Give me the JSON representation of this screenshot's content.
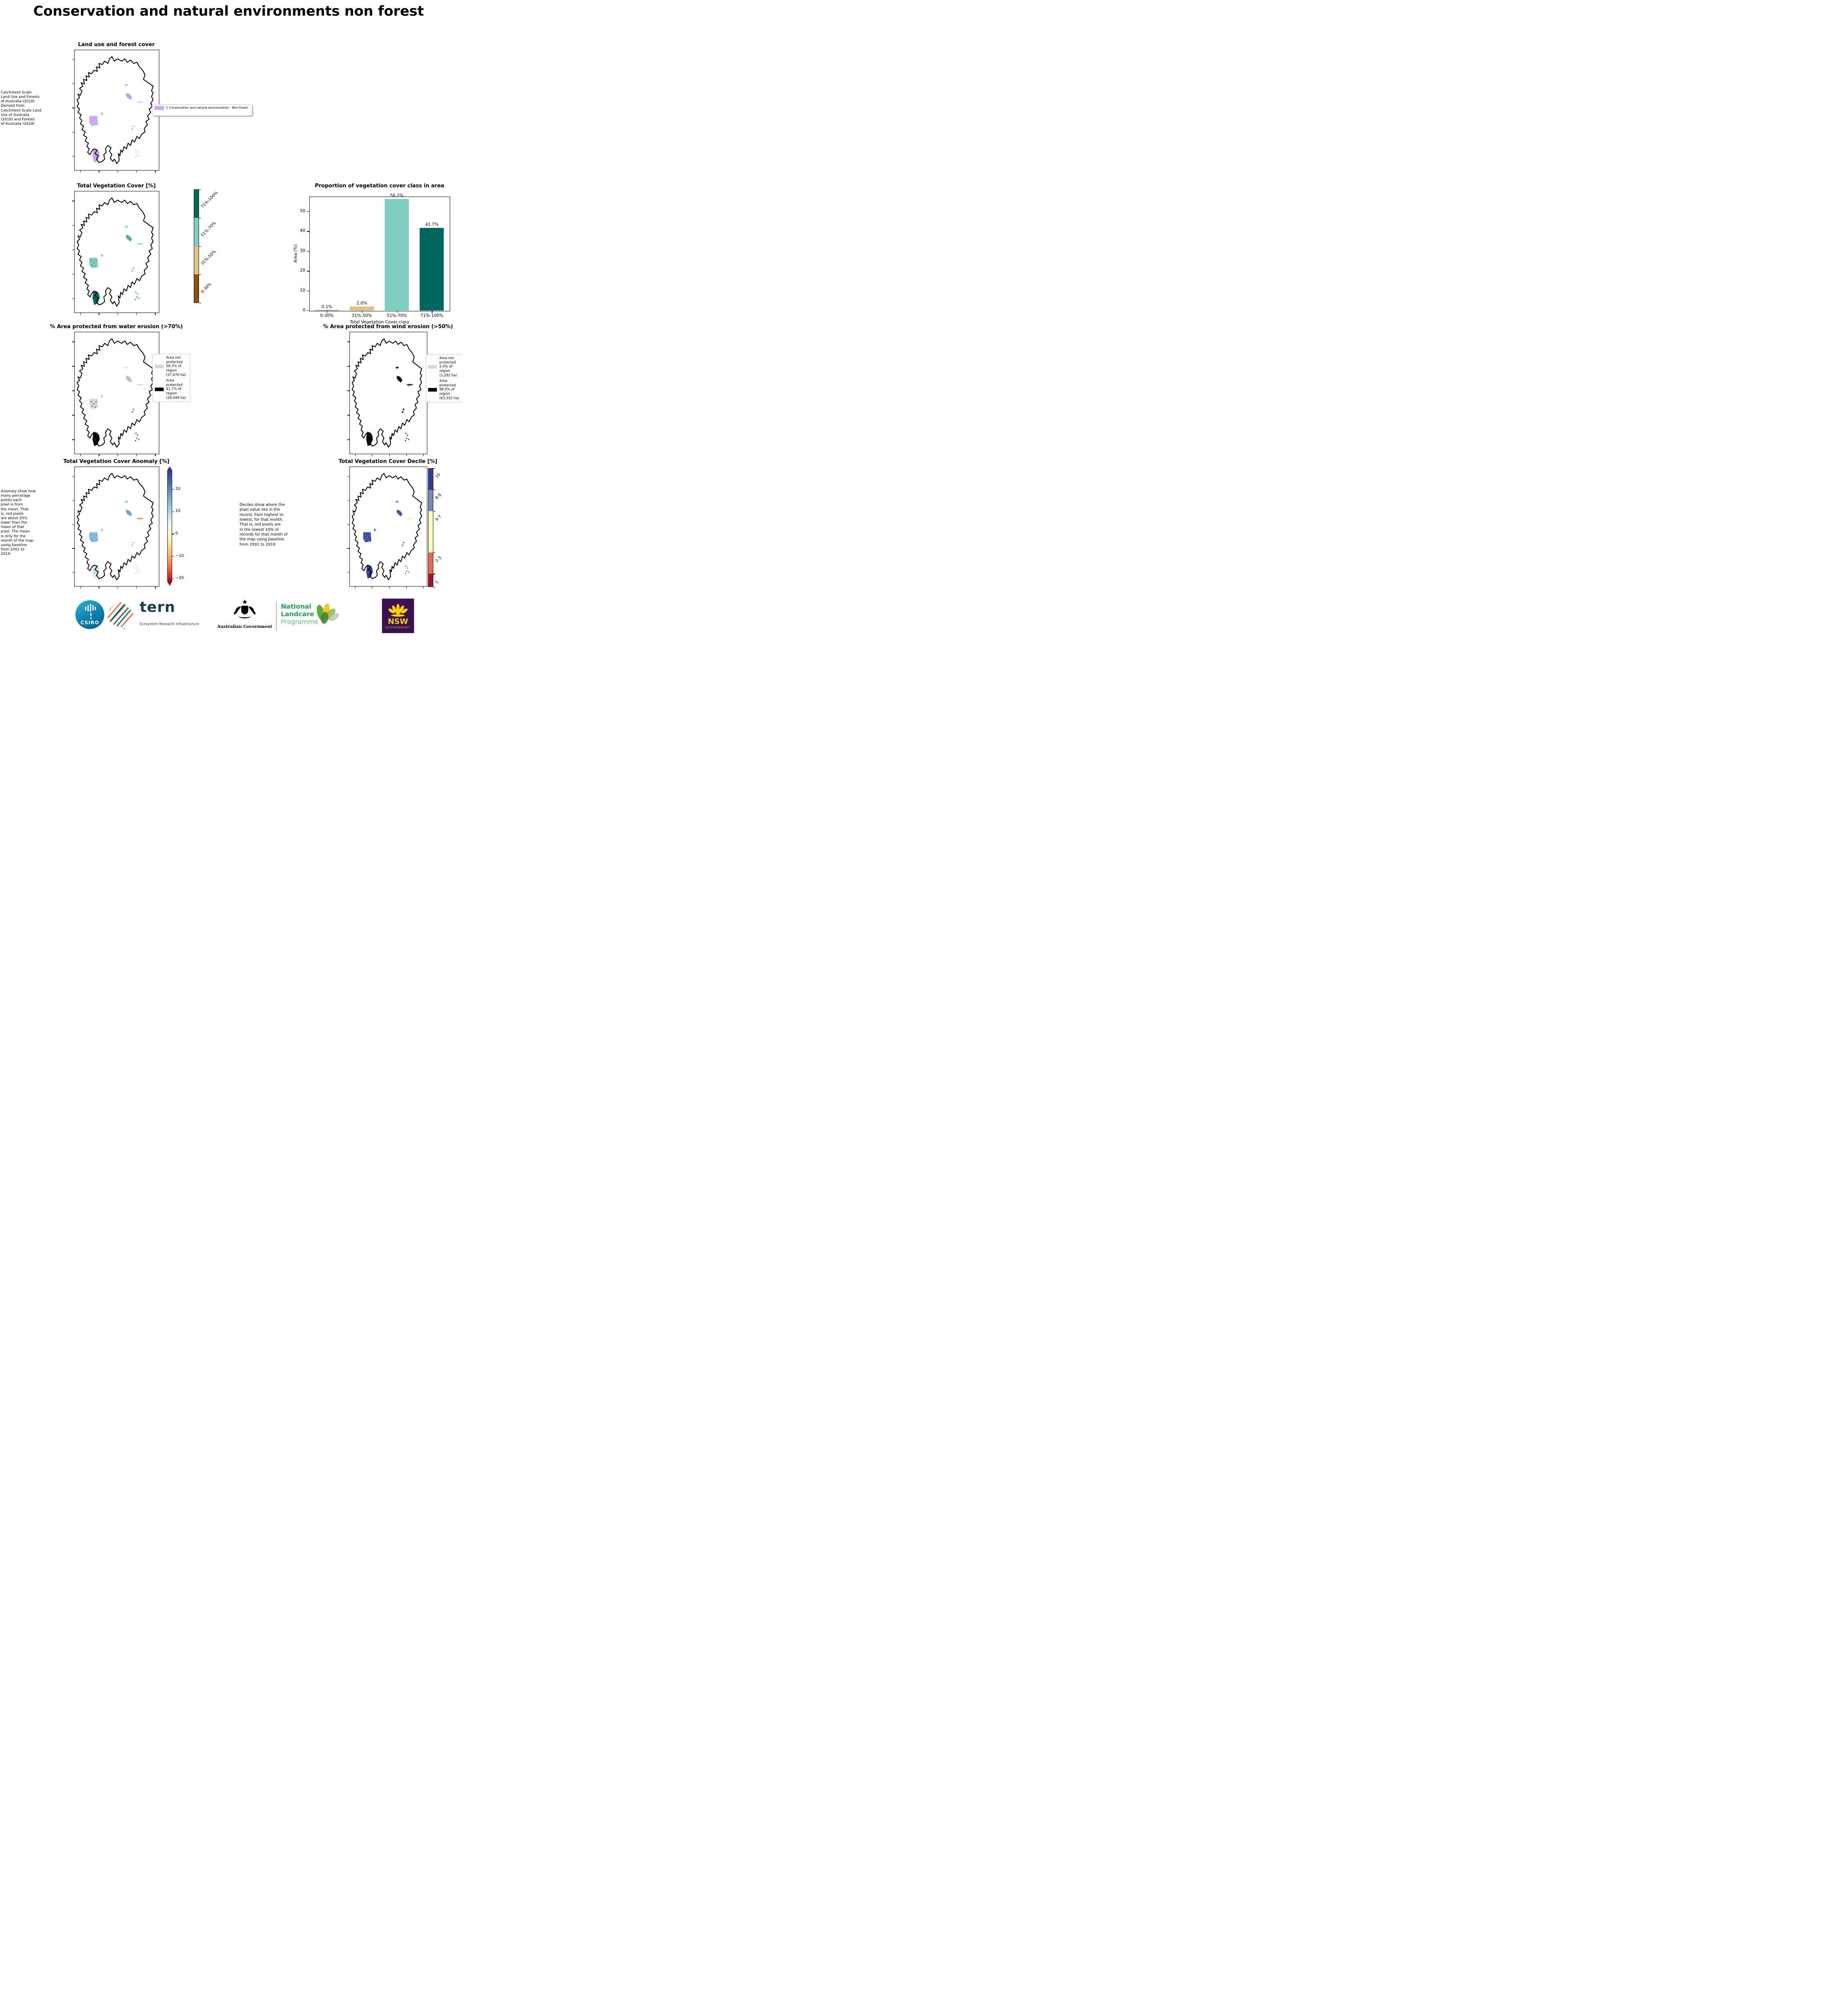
{
  "page_title": "Conservation and natural environments non forest",
  "panels": {
    "landuse": {
      "title": "Land use and forest cover",
      "side_note": "Catchment Scale\nLand Use and Forests\nof Australia (2018)\nDerived from\nCatchment Scale Land\nUse of Australia\n(2018) and Forests\nof Australia (2018)",
      "legend": {
        "label": "1 Conservation and natural environments - Non-forest",
        "swatch_color": "#cfa9f3"
      },
      "map_colors": [
        "#cfa9f3",
        "#cfa9f3",
        "#c9a0f2",
        "#cfa9f3",
        "#c6a0ee",
        "#e2cdf8",
        "#cfa9f3",
        "#d9bdf5"
      ]
    },
    "vegcover": {
      "title": "Total Vegetation Cover [%]",
      "colorbar": {
        "labels": [
          "71%-100%",
          "51%-70%",
          "31%-50%",
          "0-30%"
        ],
        "colors": [
          "#01665e",
          "#80cdc1",
          "#dfc27d",
          "#8c510a"
        ]
      },
      "map_colors": [
        "#80cdc1",
        "#80cdc1",
        "#01665e",
        "#80cdc1",
        "#58b2a4",
        "#a9dcd2",
        "#80cdc1",
        "#2f8d7e"
      ],
      "speckle": "#01665e"
    },
    "water": {
      "title": "% Area protected from water erosion (>70%)",
      "legend": [
        {
          "label": "Area not protected 58.3% of region (37,676 ha)",
          "color": "#d9d9d9"
        },
        {
          "label": "Area protected 41.7% of region (26,949 ha)",
          "color": "#000000"
        }
      ],
      "map_colors": [
        "#d9d9d9",
        "#d0d0d0",
        "#0a0a0a",
        "#d9d9d9",
        "#c0c0c0",
        "#dedede",
        "#8a8a8a",
        "#444444"
      ],
      "speckle": "#111111"
    },
    "wind": {
      "title": "% Area protected from wind erosion (>50%)",
      "legend": [
        {
          "label": "Area not protected 2.0% of region (1,292 ha)",
          "color": "#d9d9d9"
        },
        {
          "label": "Area protected 98.0% of region (63,332 ha)",
          "color": "#000000"
        }
      ],
      "map_colors": [
        null,
        null,
        "#0a0a0a",
        "#111111",
        "#111111",
        "#333333",
        "#111111",
        "#222222"
      ]
    },
    "anomaly": {
      "title": "Total Vegetation Cover Anomaly [%]",
      "side_note": "Anomaly show how\nmany percetage\npoints each\npixel is from\nthe mean. That\nis, red pixels\nare about 20%\nlower than the\nmean of that\npixel. The mean\nis only for the\nmonth of the map\nusing baseline\nfrom 2001 to\n2019.",
      "colorbar": {
        "ticks": [
          "20",
          "10",
          "0",
          "−10",
          "−20"
        ],
        "top_color": "#313695",
        "bottom_color": "#a50026"
      },
      "map_colors": [
        "#86bade",
        "#a5cde9",
        "#cde7f3",
        "#8cc0e2",
        "#6da9d4",
        "#f49c4e",
        "#9ecbe7",
        "#b9dbee"
      ],
      "speckle": "#4e8fc4"
    },
    "decile": {
      "title": "Total Vegetation Cover Decile [%]",
      "side_note": "Deciles show where the\npixel value lies in the\nrecord, from highest to\nlowest, for that month.\nThat is, red pixels are\nin the lowest 10% of\nrecords for that month of\nthe map using baseline\nfrom 2001 to 2019.",
      "colorbar": {
        "labels": [
          "10",
          "8-9",
          "4-7",
          "2-3",
          "1"
        ],
        "colors": [
          "#2e3d96",
          "#7189c2",
          "#ffffbf",
          "#e8694a",
          "#a50e27"
        ],
        "fractions": [
          0.18,
          0.18,
          0.35,
          0.18,
          0.11
        ]
      },
      "map_colors": [
        "#3c50a2",
        "#6a84bf",
        "#2f3d99",
        "#5f7ab9",
        "#45599f",
        "#f6f3b0",
        "#5f7ab9",
        "#54689f"
      ],
      "speckle": "#8fa5d1"
    }
  },
  "chart_data": {
    "type": "bar",
    "title": "Proportion of vegetation cover class in area",
    "categories": [
      "0-30%",
      "31%-50%",
      "51%-70%",
      "71%-100%"
    ],
    "values": [
      0.1,
      2.0,
      56.2,
      41.7
    ],
    "value_labels": [
      "0.1%",
      "2.0%",
      "56.2%",
      "41.7%"
    ],
    "colors": [
      "#8c510a",
      "#dfc27d",
      "#80cdc1",
      "#01665e"
    ],
    "xlabel": "Total Vegetation Cover class",
    "ylabel": "Area (%)",
    "yticks": [
      0,
      10,
      20,
      30,
      40,
      50
    ],
    "ylim": [
      0,
      57.5
    ],
    "grid": false,
    "legend_position": "none"
  },
  "footer": {
    "csiro": "CSIRO",
    "tern": "tern",
    "tern_subtitle": "Ecosystem Research Infrastructure",
    "aus_gov": "Australian Government",
    "landcare_lines": [
      "National",
      "Landcare",
      "Programme"
    ],
    "nsw": "NSW",
    "nsw_subtitle": "GOVERNMENT",
    "colors": {
      "csiro_blue": "#0d7fae",
      "tern_dark": "#16424e",
      "landcare_green": "#1b9e52",
      "landcare_light": "#5fbe8a",
      "nsw_purple": "#3b1152",
      "nsw_yellow": "#f6d200"
    }
  }
}
